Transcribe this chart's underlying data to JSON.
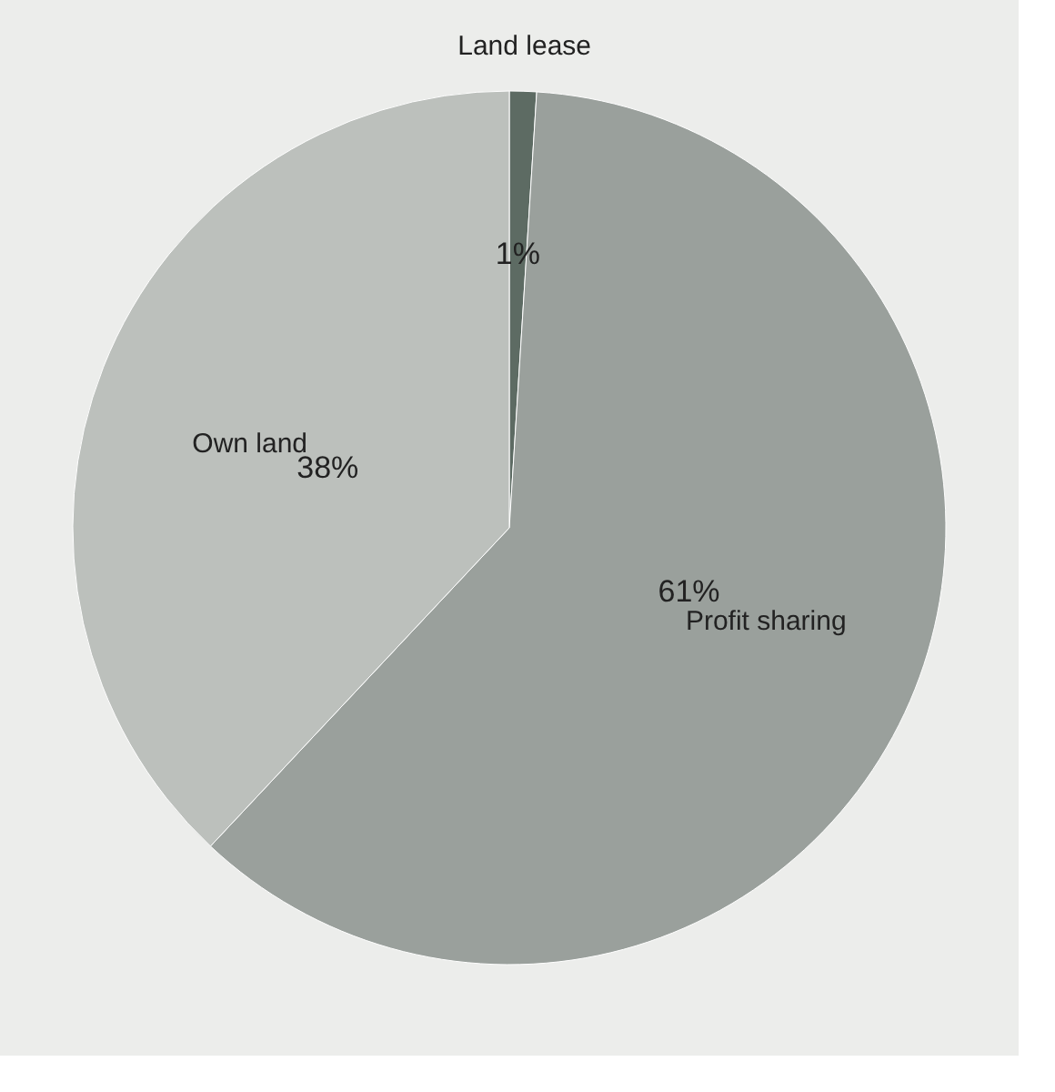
{
  "chart_data": {
    "type": "pie",
    "categories": [
      "Land lease",
      "Profit sharing",
      "Own land"
    ],
    "values": [
      1,
      61,
      38
    ],
    "colors": [
      "#5d6b63",
      "#9aa09c",
      "#bcc0bc"
    ],
    "value_labels": [
      "1%",
      "61%",
      "38%"
    ],
    "legend": false
  }
}
